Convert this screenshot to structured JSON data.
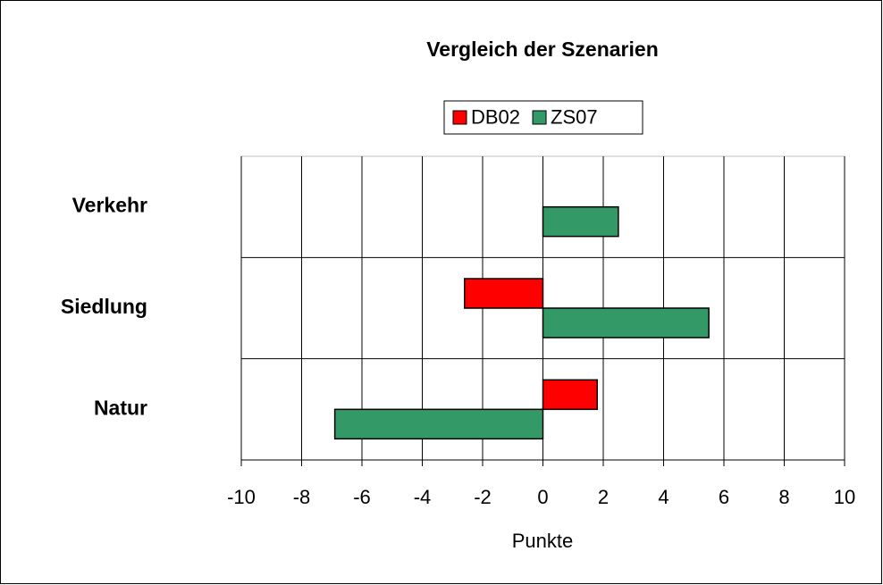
{
  "chart_data": {
    "type": "bar",
    "orientation": "horizontal",
    "title": "Vergleich der Szenarien",
    "categories": [
      "Verkehr",
      "Siedlung",
      "Natur"
    ],
    "series": [
      {
        "name": "DB02",
        "color": "#ff0000",
        "values": [
          0,
          -2.6,
          1.8
        ]
      },
      {
        "name": "ZS07",
        "color": "#339966",
        "values": [
          2.5,
          5.5,
          -6.9
        ]
      }
    ],
    "xlabel": "Punkte",
    "xlim": [
      -10,
      10
    ],
    "xticks": [
      -10,
      -8,
      -6,
      -4,
      -2,
      0,
      2,
      4,
      6,
      8,
      10
    ],
    "grid": true,
    "legend": "top"
  }
}
